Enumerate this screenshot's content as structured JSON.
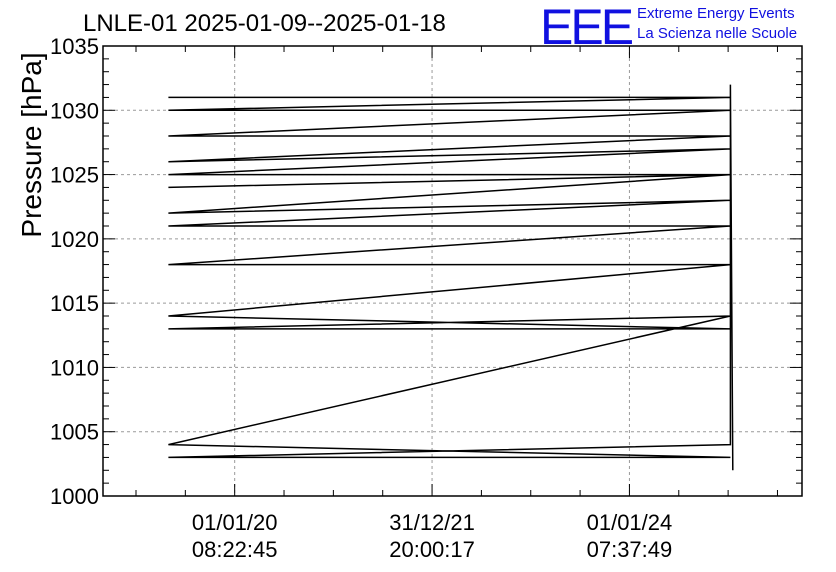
{
  "chart_data": {
    "type": "line",
    "title": "LNLE-01 2025-01-09--2025-01-18",
    "xlabel": "",
    "ylabel": "Pressure [hPa]",
    "ylim": [
      1000,
      1035
    ],
    "yticks": [
      1000,
      1005,
      1010,
      1015,
      1020,
      1025,
      1030,
      1035
    ],
    "xticks": [
      {
        "date": "01/01/20",
        "time": "08:22:45"
      },
      {
        "date": "31/12/21",
        "time": "20:00:17"
      },
      {
        "date": "01/01/24",
        "time": "07:37:49"
      }
    ],
    "xlim": [
      "2018-09-01",
      "2025-10-01"
    ],
    "grid": true,
    "series": [
      {
        "values": [
          {
            "x": "2019-05-01",
            "y": 1031
          },
          {
            "x": "2025-01-09",
            "y": 1031
          },
          {
            "x": "2019-05-01",
            "y": 1030
          },
          {
            "x": "2025-01-09",
            "y": 1030
          },
          {
            "x": "2019-05-01",
            "y": 1028
          },
          {
            "x": "2025-01-09",
            "y": 1028
          },
          {
            "x": "2019-05-01",
            "y": 1026
          },
          {
            "x": "2025-01-09",
            "y": 1027
          },
          {
            "x": "2019-05-01",
            "y": 1025
          },
          {
            "x": "2025-01-09",
            "y": 1025
          },
          {
            "x": "2019-05-01",
            "y": 1024
          },
          {
            "x": "2025-01-09",
            "y": 1025
          },
          {
            "x": "2019-05-01",
            "y": 1022
          },
          {
            "x": "2025-01-09",
            "y": 1023
          },
          {
            "x": "2019-05-01",
            "y": 1021
          },
          {
            "x": "2025-01-09",
            "y": 1021
          },
          {
            "x": "2019-05-01",
            "y": 1018
          },
          {
            "x": "2025-01-09",
            "y": 1018
          },
          {
            "x": "2019-05-01",
            "y": 1014
          },
          {
            "x": "2025-01-09",
            "y": 1013
          },
          {
            "x": "2019-05-01",
            "y": 1013
          },
          {
            "x": "2025-01-09",
            "y": 1014
          },
          {
            "x": "2019-05-01",
            "y": 1004
          },
          {
            "x": "2025-01-09",
            "y": 1003
          },
          {
            "x": "2019-05-01",
            "y": 1003
          },
          {
            "x": "2025-01-09",
            "y": 1004
          },
          {
            "x": "2025-01-09",
            "y": 1032
          },
          {
            "x": "2025-01-18",
            "y": 1002
          }
        ]
      }
    ]
  },
  "logo": {
    "mark": "EEE",
    "line1": "Extreme Energy Events",
    "line2": "La Scienza nelle Scuole",
    "color": "#1010e0"
  }
}
